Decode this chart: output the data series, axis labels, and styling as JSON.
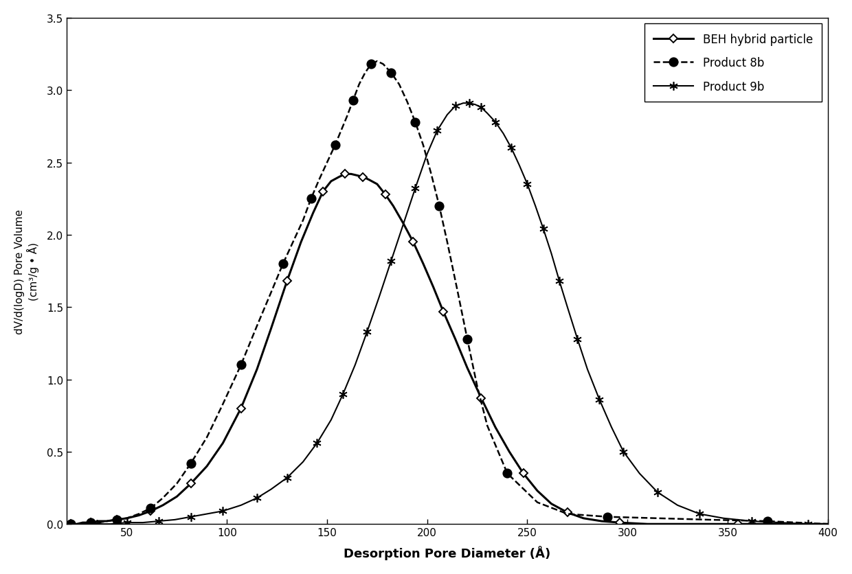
{
  "xlabel": "Desorption Pore Diameter (Å)",
  "ylabel_line1": "dV/d(logD) Pore Volume",
  "ylabel_line2": "(cm³/g • Å)",
  "xlim": [
    20,
    400
  ],
  "ylim": [
    0,
    3.5
  ],
  "xticks": [
    50,
    100,
    150,
    200,
    250,
    300,
    350,
    400
  ],
  "yticks": [
    0.0,
    0.5,
    1.0,
    1.5,
    2.0,
    2.5,
    3.0,
    3.5
  ],
  "legend_labels": [
    "BEH hybrid particle",
    "Product 8b",
    "Product 9b"
  ],
  "beh_x": [
    22,
    25,
    28,
    32,
    36,
    40,
    45,
    50,
    56,
    62,
    68,
    75,
    82,
    90,
    98,
    107,
    115,
    122,
    130,
    137,
    143,
    148,
    152,
    156,
    159,
    162,
    165,
    168,
    171,
    175,
    179,
    183,
    188,
    193,
    198,
    203,
    208,
    214,
    220,
    227,
    234,
    241,
    248,
    255,
    262,
    270,
    278,
    287,
    296,
    310,
    330,
    355,
    380,
    400
  ],
  "beh_y": [
    0.0,
    0.0,
    0.01,
    0.01,
    0.02,
    0.02,
    0.03,
    0.04,
    0.06,
    0.09,
    0.13,
    0.19,
    0.28,
    0.4,
    0.56,
    0.8,
    1.07,
    1.35,
    1.68,
    1.95,
    2.15,
    2.3,
    2.37,
    2.4,
    2.42,
    2.42,
    2.41,
    2.4,
    2.38,
    2.35,
    2.28,
    2.2,
    2.08,
    1.95,
    1.8,
    1.64,
    1.47,
    1.28,
    1.08,
    0.87,
    0.67,
    0.5,
    0.35,
    0.23,
    0.14,
    0.08,
    0.04,
    0.02,
    0.01,
    0.0,
    0.0,
    0.0,
    0.0,
    0.0
  ],
  "prod8b_x": [
    22,
    25,
    28,
    32,
    36,
    40,
    45,
    50,
    56,
    62,
    68,
    75,
    82,
    90,
    98,
    107,
    115,
    122,
    128,
    133,
    138,
    142,
    146,
    150,
    154,
    157,
    160,
    163,
    166,
    169,
    172,
    175,
    178,
    182,
    186,
    190,
    194,
    198,
    202,
    206,
    210,
    215,
    220,
    225,
    230,
    240,
    255,
    270,
    290,
    315,
    340,
    370,
    400
  ],
  "prod8b_y": [
    0.0,
    0.0,
    0.0,
    0.01,
    0.01,
    0.02,
    0.03,
    0.04,
    0.07,
    0.11,
    0.18,
    0.28,
    0.42,
    0.6,
    0.83,
    1.1,
    1.37,
    1.6,
    1.8,
    1.95,
    2.1,
    2.25,
    2.38,
    2.5,
    2.62,
    2.72,
    2.82,
    2.93,
    3.04,
    3.12,
    3.18,
    3.2,
    3.18,
    3.12,
    3.04,
    2.92,
    2.78,
    2.62,
    2.42,
    2.2,
    1.95,
    1.62,
    1.28,
    0.95,
    0.68,
    0.35,
    0.15,
    0.07,
    0.05,
    0.04,
    0.03,
    0.02,
    0.0
  ],
  "prod9b_x": [
    22,
    28,
    35,
    42,
    50,
    58,
    66,
    74,
    82,
    90,
    98,
    107,
    115,
    122,
    130,
    138,
    145,
    152,
    158,
    164,
    170,
    176,
    182,
    188,
    194,
    200,
    205,
    210,
    214,
    218,
    221,
    224,
    227,
    230,
    234,
    238,
    242,
    246,
    250,
    254,
    258,
    262,
    266,
    270,
    275,
    280,
    286,
    292,
    298,
    306,
    315,
    325,
    336,
    348,
    362,
    376,
    390,
    400
  ],
  "prod9b_y": [
    0.0,
    0.0,
    0.0,
    0.0,
    0.01,
    0.01,
    0.02,
    0.03,
    0.05,
    0.07,
    0.09,
    0.13,
    0.18,
    0.24,
    0.32,
    0.43,
    0.56,
    0.72,
    0.9,
    1.1,
    1.33,
    1.57,
    1.82,
    2.07,
    2.32,
    2.56,
    2.72,
    2.83,
    2.89,
    2.91,
    2.91,
    2.9,
    2.88,
    2.84,
    2.78,
    2.7,
    2.6,
    2.48,
    2.35,
    2.2,
    2.04,
    1.87,
    1.68,
    1.5,
    1.28,
    1.07,
    0.86,
    0.67,
    0.5,
    0.35,
    0.22,
    0.13,
    0.07,
    0.04,
    0.02,
    0.01,
    0.0,
    0.0
  ]
}
